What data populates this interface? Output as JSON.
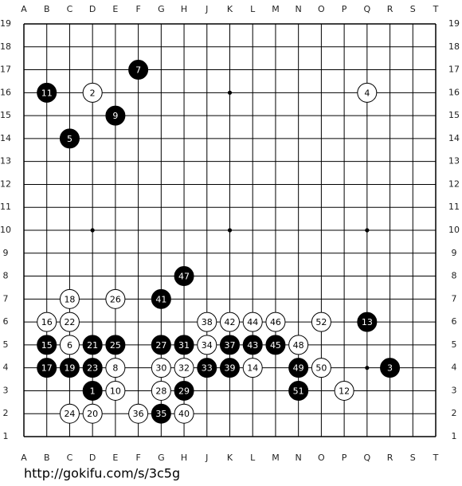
{
  "board": {
    "columns": [
      "A",
      "B",
      "C",
      "D",
      "E",
      "F",
      "G",
      "H",
      "J",
      "K",
      "L",
      "M",
      "N",
      "O",
      "P",
      "Q",
      "R",
      "S",
      "T"
    ],
    "rows": [
      19,
      18,
      17,
      16,
      15,
      14,
      13,
      12,
      11,
      10,
      9,
      8,
      7,
      6,
      5,
      4,
      3,
      2,
      1
    ],
    "stones": [
      {
        "move": 1,
        "color": "black",
        "col": "D",
        "row": 3
      },
      {
        "move": 2,
        "color": "white",
        "col": "D",
        "row": 16
      },
      {
        "move": 3,
        "color": "black",
        "col": "R",
        "row": 4
      },
      {
        "move": 4,
        "color": "white",
        "col": "Q",
        "row": 16
      },
      {
        "move": 5,
        "color": "black",
        "col": "C",
        "row": 14
      },
      {
        "move": 6,
        "color": "white",
        "col": "C",
        "row": 5
      },
      {
        "move": 7,
        "color": "black",
        "col": "F",
        "row": 17
      },
      {
        "move": 8,
        "color": "white",
        "col": "E",
        "row": 4
      },
      {
        "move": 9,
        "color": "black",
        "col": "E",
        "row": 15
      },
      {
        "move": 10,
        "color": "white",
        "col": "E",
        "row": 3
      },
      {
        "move": 11,
        "color": "black",
        "col": "B",
        "row": 16
      },
      {
        "move": 12,
        "color": "white",
        "col": "P",
        "row": 3
      },
      {
        "move": 13,
        "color": "black",
        "col": "Q",
        "row": 6
      },
      {
        "move": 14,
        "color": "white",
        "col": "L",
        "row": 4
      },
      {
        "move": 15,
        "color": "black",
        "col": "B",
        "row": 5
      },
      {
        "move": 16,
        "color": "white",
        "col": "B",
        "row": 6
      },
      {
        "move": 17,
        "color": "black",
        "col": "B",
        "row": 4
      },
      {
        "move": 18,
        "color": "white",
        "col": "C",
        "row": 7
      },
      {
        "move": 19,
        "color": "black",
        "col": "C",
        "row": 4
      },
      {
        "move": 20,
        "color": "white",
        "col": "D",
        "row": 2
      },
      {
        "move": 21,
        "color": "black",
        "col": "D",
        "row": 5
      },
      {
        "move": 22,
        "color": "white",
        "col": "C",
        "row": 6
      },
      {
        "move": 23,
        "color": "black",
        "col": "D",
        "row": 4
      },
      {
        "move": 24,
        "color": "white",
        "col": "C",
        "row": 2
      },
      {
        "move": 25,
        "color": "black",
        "col": "E",
        "row": 5
      },
      {
        "move": 26,
        "color": "white",
        "col": "E",
        "row": 7
      },
      {
        "move": 27,
        "color": "black",
        "col": "G",
        "row": 5
      },
      {
        "move": 28,
        "color": "white",
        "col": "G",
        "row": 3
      },
      {
        "move": 29,
        "color": "black",
        "col": "H",
        "row": 3
      },
      {
        "move": 30,
        "color": "white",
        "col": "G",
        "row": 4
      },
      {
        "move": 31,
        "color": "black",
        "col": "H",
        "row": 5
      },
      {
        "move": 32,
        "color": "white",
        "col": "H",
        "row": 4
      },
      {
        "move": 33,
        "color": "black",
        "col": "J",
        "row": 4
      },
      {
        "move": 34,
        "color": "white",
        "col": "J",
        "row": 5
      },
      {
        "move": 35,
        "color": "black",
        "col": "G",
        "row": 2
      },
      {
        "move": 36,
        "color": "white",
        "col": "F",
        "row": 2
      },
      {
        "move": 37,
        "color": "black",
        "col": "K",
        "row": 5
      },
      {
        "move": 38,
        "color": "white",
        "col": "J",
        "row": 6
      },
      {
        "move": 39,
        "color": "black",
        "col": "K",
        "row": 4
      },
      {
        "move": 40,
        "color": "white",
        "col": "H",
        "row": 2
      },
      {
        "move": 41,
        "color": "black",
        "col": "G",
        "row": 7
      },
      {
        "move": 42,
        "color": "white",
        "col": "K",
        "row": 6
      },
      {
        "move": 43,
        "color": "black",
        "col": "L",
        "row": 5
      },
      {
        "move": 44,
        "color": "white",
        "col": "L",
        "row": 6
      },
      {
        "move": 45,
        "color": "black",
        "col": "M",
        "row": 5
      },
      {
        "move": 46,
        "color": "white",
        "col": "M",
        "row": 6
      },
      {
        "move": 47,
        "color": "black",
        "col": "H",
        "row": 8
      },
      {
        "move": 48,
        "color": "white",
        "col": "N",
        "row": 5
      },
      {
        "move": 49,
        "color": "black",
        "col": "N",
        "row": 4
      },
      {
        "move": 50,
        "color": "white",
        "col": "O",
        "row": 4
      },
      {
        "move": 51,
        "color": "black",
        "col": "N",
        "row": 3
      },
      {
        "move": 52,
        "color": "white",
        "col": "O",
        "row": 6
      }
    ]
  },
  "footer": {
    "url": "http://gokifu.com/s/3c5g"
  }
}
